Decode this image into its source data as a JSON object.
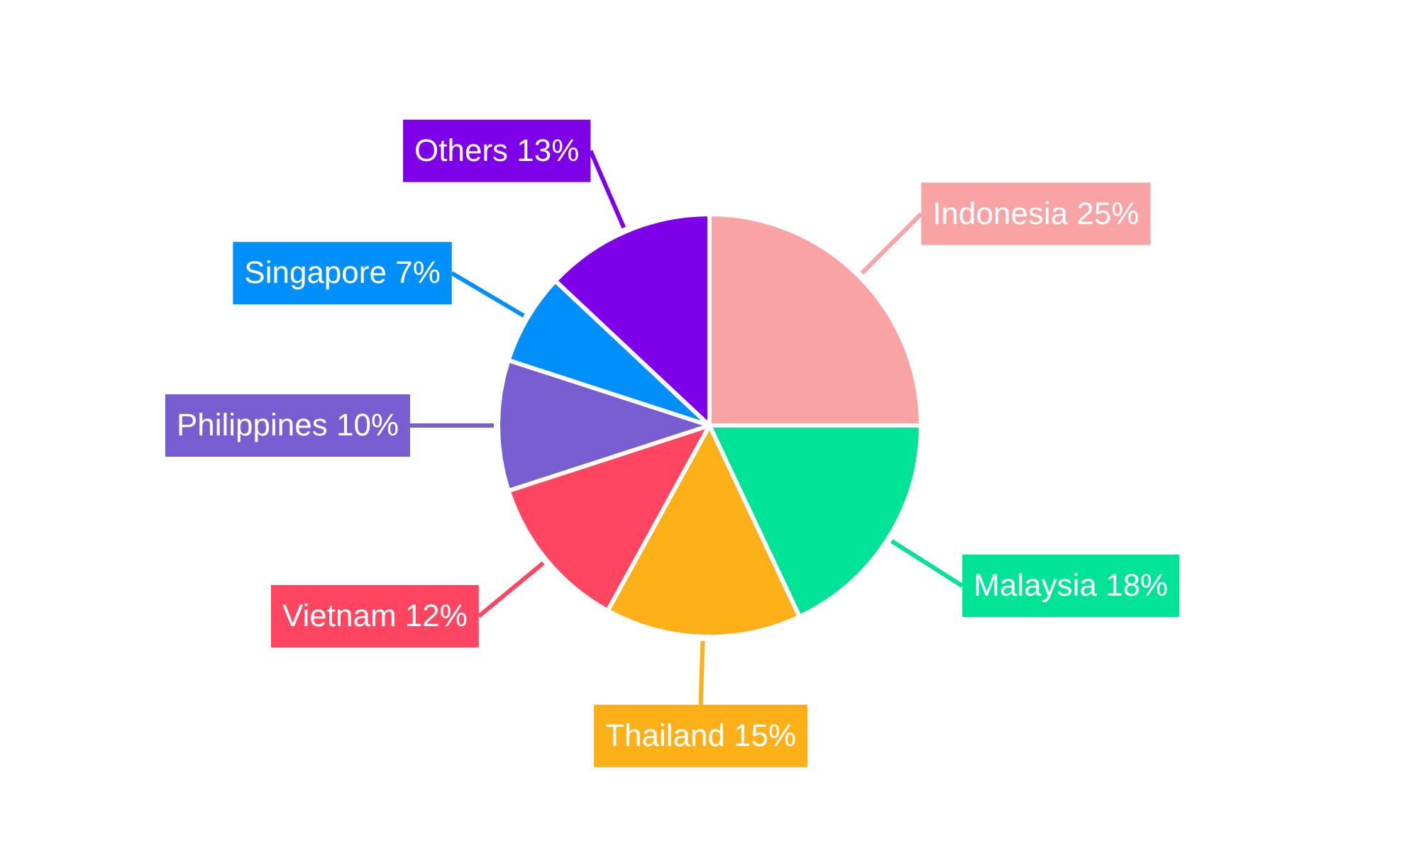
{
  "chart_data": {
    "type": "pie",
    "categories": [
      "Indonesia",
      "Malaysia",
      "Thailand",
      "Vietnam",
      "Philippines",
      "Singapore",
      "Others"
    ],
    "values": [
      25,
      18,
      15,
      12,
      10,
      7,
      13
    ],
    "colors": [
      "#f9a3a4",
      "#00e396",
      "#feb019",
      "#ff4560",
      "#775dd0",
      "#008ffb",
      "#7e00e8"
    ],
    "value_labels": [
      "25%",
      "18%",
      "15%",
      "12%",
      "10%",
      "7%",
      "13%"
    ]
  }
}
